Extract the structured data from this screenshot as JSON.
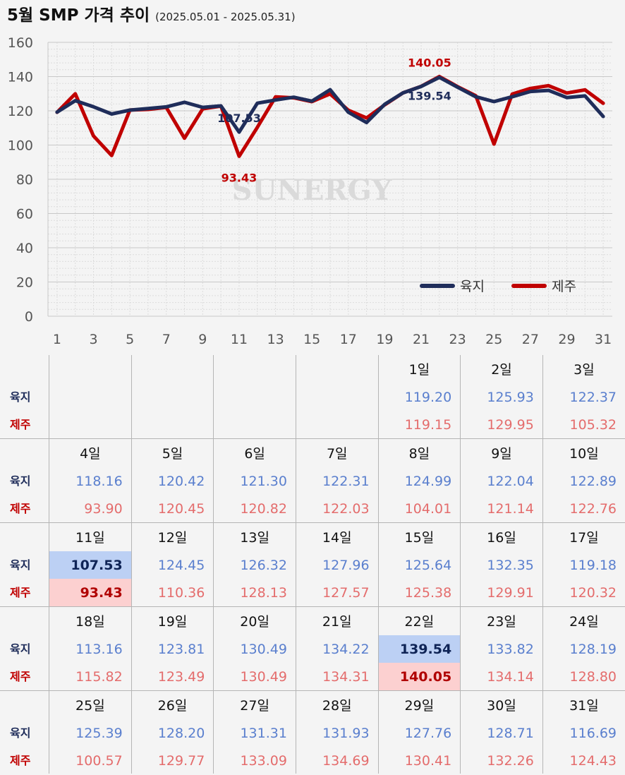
{
  "header": {
    "title": "5월 SMP 가격 추이",
    "period": "(2025.05.01 - 2025.05.31)"
  },
  "chart_data": {
    "type": "line",
    "x": [
      1,
      2,
      3,
      4,
      5,
      6,
      7,
      8,
      9,
      10,
      11,
      12,
      13,
      14,
      15,
      16,
      17,
      18,
      19,
      20,
      21,
      22,
      23,
      24,
      25,
      26,
      27,
      28,
      29,
      30,
      31
    ],
    "x_tick_labels": [
      "1",
      "3",
      "5",
      "7",
      "9",
      "11",
      "13",
      "15",
      "17",
      "19",
      "21",
      "23",
      "25",
      "27",
      "29",
      "31"
    ],
    "ylim": [
      0,
      160
    ],
    "y_ticks": [
      0,
      20,
      40,
      60,
      80,
      100,
      120,
      140,
      160
    ],
    "grid": true,
    "legend_position": "bottom-right",
    "watermark": "SUNERGY",
    "series": [
      {
        "name": "육지",
        "color": "#1f2d5a",
        "values": [
          119.2,
          125.93,
          122.37,
          118.16,
          120.42,
          121.3,
          122.31,
          124.99,
          122.04,
          122.89,
          107.53,
          124.45,
          126.32,
          127.96,
          125.64,
          132.35,
          119.18,
          113.16,
          123.81,
          130.49,
          134.22,
          139.54,
          133.82,
          128.19,
          125.39,
          128.2,
          131.31,
          131.93,
          127.76,
          128.71,
          116.69
        ]
      },
      {
        "name": "제주",
        "color": "#c00000",
        "values": [
          119.15,
          129.95,
          105.32,
          93.9,
          120.45,
          120.82,
          122.03,
          104.01,
          121.14,
          122.76,
          93.43,
          110.36,
          128.13,
          127.57,
          125.38,
          129.91,
          120.32,
          115.82,
          123.49,
          130.49,
          134.31,
          140.05,
          134.14,
          128.8,
          100.57,
          129.77,
          133.09,
          134.69,
          130.41,
          132.26,
          124.43
        ]
      }
    ],
    "annotations": [
      {
        "series": "육지",
        "x": 11,
        "text": "107.53"
      },
      {
        "series": "제주",
        "x": 11,
        "text": "93.43"
      },
      {
        "series": "육지",
        "x": 22,
        "text": "139.54"
      },
      {
        "series": "제주",
        "x": 22,
        "text": "140.05"
      }
    ]
  },
  "table": {
    "row_labels": {
      "land": "육지",
      "jeju": "제주"
    },
    "day_suffix": "일",
    "weeks": [
      [
        null,
        null,
        null,
        null,
        {
          "day": 1,
          "land": "119.20",
          "jeju": "119.15"
        },
        {
          "day": 2,
          "land": "125.93",
          "jeju": "129.95"
        },
        {
          "day": 3,
          "land": "122.37",
          "jeju": "105.32"
        }
      ],
      [
        {
          "day": 4,
          "land": "118.16",
          "jeju": "93.90"
        },
        {
          "day": 5,
          "land": "120.42",
          "jeju": "120.45"
        },
        {
          "day": 6,
          "land": "121.30",
          "jeju": "120.82"
        },
        {
          "day": 7,
          "land": "122.31",
          "jeju": "122.03"
        },
        {
          "day": 8,
          "land": "124.99",
          "jeju": "104.01"
        },
        {
          "day": 9,
          "land": "122.04",
          "jeju": "121.14"
        },
        {
          "day": 10,
          "land": "122.89",
          "jeju": "122.76"
        }
      ],
      [
        {
          "day": 11,
          "land": "107.53",
          "jeju": "93.43",
          "highlight": true
        },
        {
          "day": 12,
          "land": "124.45",
          "jeju": "110.36"
        },
        {
          "day": 13,
          "land": "126.32",
          "jeju": "128.13"
        },
        {
          "day": 14,
          "land": "127.96",
          "jeju": "127.57"
        },
        {
          "day": 15,
          "land": "125.64",
          "jeju": "125.38"
        },
        {
          "day": 16,
          "land": "132.35",
          "jeju": "129.91"
        },
        {
          "day": 17,
          "land": "119.18",
          "jeju": "120.32"
        }
      ],
      [
        {
          "day": 18,
          "land": "113.16",
          "jeju": "115.82"
        },
        {
          "day": 19,
          "land": "123.81",
          "jeju": "123.49"
        },
        {
          "day": 20,
          "land": "130.49",
          "jeju": "130.49"
        },
        {
          "day": 21,
          "land": "134.22",
          "jeju": "134.31"
        },
        {
          "day": 22,
          "land": "139.54",
          "jeju": "140.05",
          "highlight": true
        },
        {
          "day": 23,
          "land": "133.82",
          "jeju": "134.14"
        },
        {
          "day": 24,
          "land": "128.19",
          "jeju": "128.80"
        }
      ],
      [
        {
          "day": 25,
          "land": "125.39",
          "jeju": "100.57"
        },
        {
          "day": 26,
          "land": "128.20",
          "jeju": "129.77"
        },
        {
          "day": 27,
          "land": "131.31",
          "jeju": "133.09"
        },
        {
          "day": 28,
          "land": "131.93",
          "jeju": "134.69"
        },
        {
          "day": 29,
          "land": "127.76",
          "jeju": "130.41"
        },
        {
          "day": 30,
          "land": "128.71",
          "jeju": "132.26"
        },
        {
          "day": 31,
          "land": "116.69",
          "jeju": "124.43"
        }
      ]
    ]
  }
}
